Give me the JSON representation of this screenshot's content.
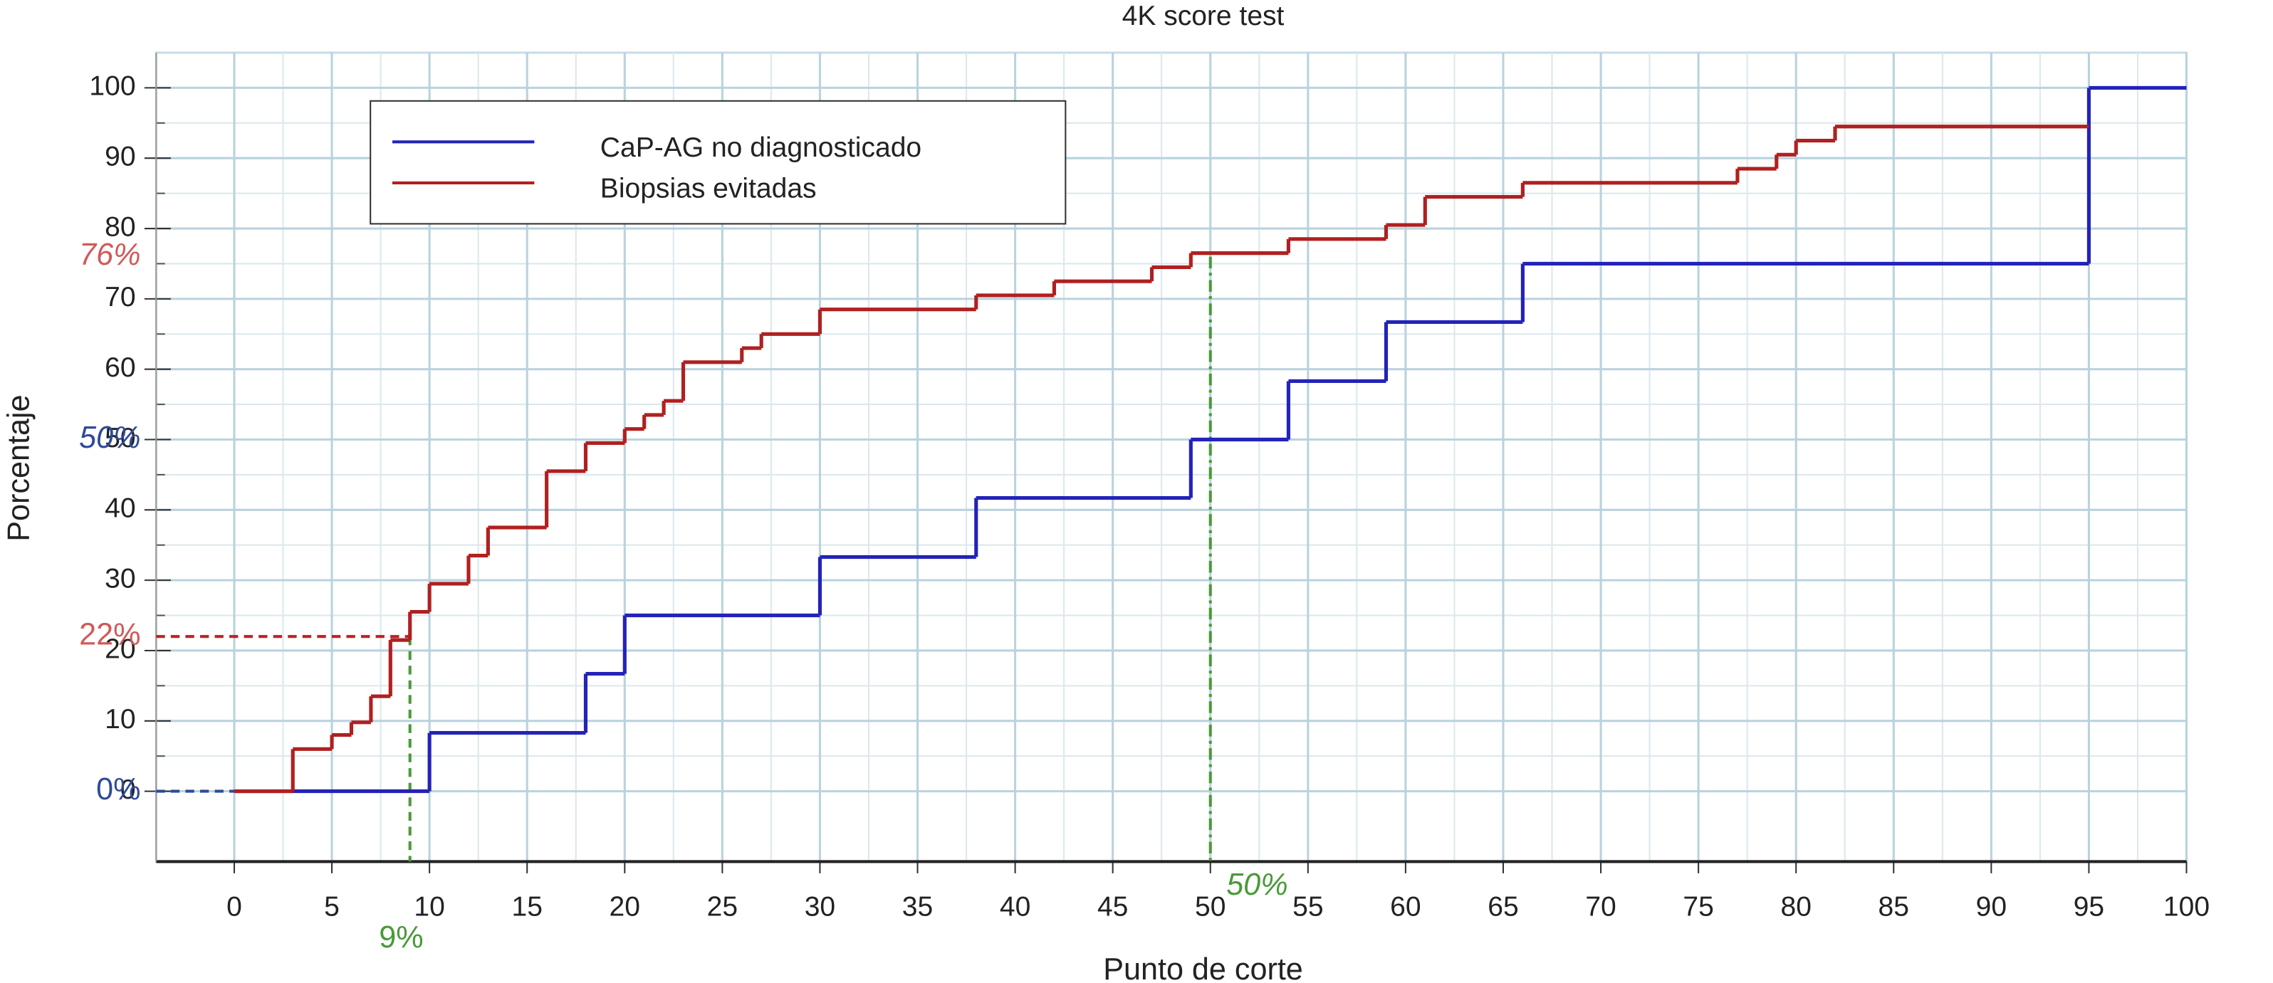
{
  "chart_data": {
    "type": "step",
    "title": "4K score test",
    "x_label": "Punto de corte",
    "y_label": "Porcentaje",
    "xlim": [
      -4,
      100
    ],
    "xticks": [
      0,
      5,
      10,
      15,
      20,
      25,
      30,
      35,
      40,
      45,
      50,
      55,
      60,
      65,
      70,
      75,
      80,
      85,
      90,
      95,
      100
    ],
    "ylim": [
      -10,
      105
    ],
    "yticks": [
      0,
      10,
      20,
      30,
      40,
      50,
      60,
      70,
      80,
      90,
      100
    ],
    "grid": true,
    "legend": "upper left",
    "series": [
      {
        "name": "CaP-AG no diagnosticado",
        "color": "#2323b8",
        "x": [
          0,
          10,
          18,
          20,
          30,
          38,
          49,
          54,
          59,
          66,
          95,
          100
        ],
        "values": [
          0,
          8.3,
          16.7,
          25,
          33.3,
          41.7,
          50,
          58.3,
          66.7,
          75,
          100,
          100
        ]
      },
      {
        "name": "Biopsias evitadas",
        "color": "#b02020",
        "x": [
          0,
          3,
          5,
          6,
          7,
          8,
          9,
          10,
          12,
          13,
          16,
          18,
          20,
          21,
          22,
          23,
          26,
          27,
          30,
          38,
          42,
          47,
          49,
          54,
          59,
          61,
          66,
          77,
          79,
          80,
          82,
          95
        ],
        "values": [
          0,
          6,
          8,
          9.8,
          13.5,
          21.5,
          25.5,
          29.5,
          33.5,
          37.5,
          45.5,
          49.5,
          51.5,
          53.5,
          55.5,
          61,
          63,
          65,
          68.5,
          70.5,
          72.5,
          74.5,
          76.5,
          78.5,
          80.5,
          84.5,
          86.5,
          88.5,
          90.5,
          92.5,
          94.5,
          94.5
        ]
      }
    ],
    "annotations": [
      {
        "text": "76%",
        "axis": "y",
        "value": 76,
        "color": "#d05a5a",
        "italic": true
      },
      {
        "text": "50%",
        "axis": "y",
        "value": 50,
        "color": "#2e4a9a",
        "italic": true
      },
      {
        "text": "22%",
        "axis": "y",
        "value": 22,
        "color": "#d05a5a",
        "italic": false
      },
      {
        "text": "0%",
        "axis": "y",
        "value": 0,
        "color": "#2e4a9a",
        "italic": false
      },
      {
        "text": "9%",
        "axis": "x",
        "value": 9,
        "color": "#4a9a3a",
        "italic": false
      },
      {
        "text": "50%",
        "axis": "x",
        "value": 50,
        "color": "#4a9a3a",
        "italic": true
      }
    ],
    "reference_lines": [
      {
        "x": [
          -4,
          9
        ],
        "y": [
          22,
          22
        ],
        "color": "#c02020",
        "dash": "6,4"
      },
      {
        "x": [
          9,
          9
        ],
        "y": [
          22,
          -10
        ],
        "color": "#4a9a3a",
        "dash": "6,4"
      },
      {
        "x": [
          50,
          50
        ],
        "y": [
          76,
          -10
        ],
        "color": "#4a9a3a",
        "dash": "8,3,2,3"
      },
      {
        "x": [
          -4,
          0
        ],
        "y": [
          0,
          0
        ],
        "color": "#2e4a9a",
        "dash": "6,4"
      }
    ]
  }
}
